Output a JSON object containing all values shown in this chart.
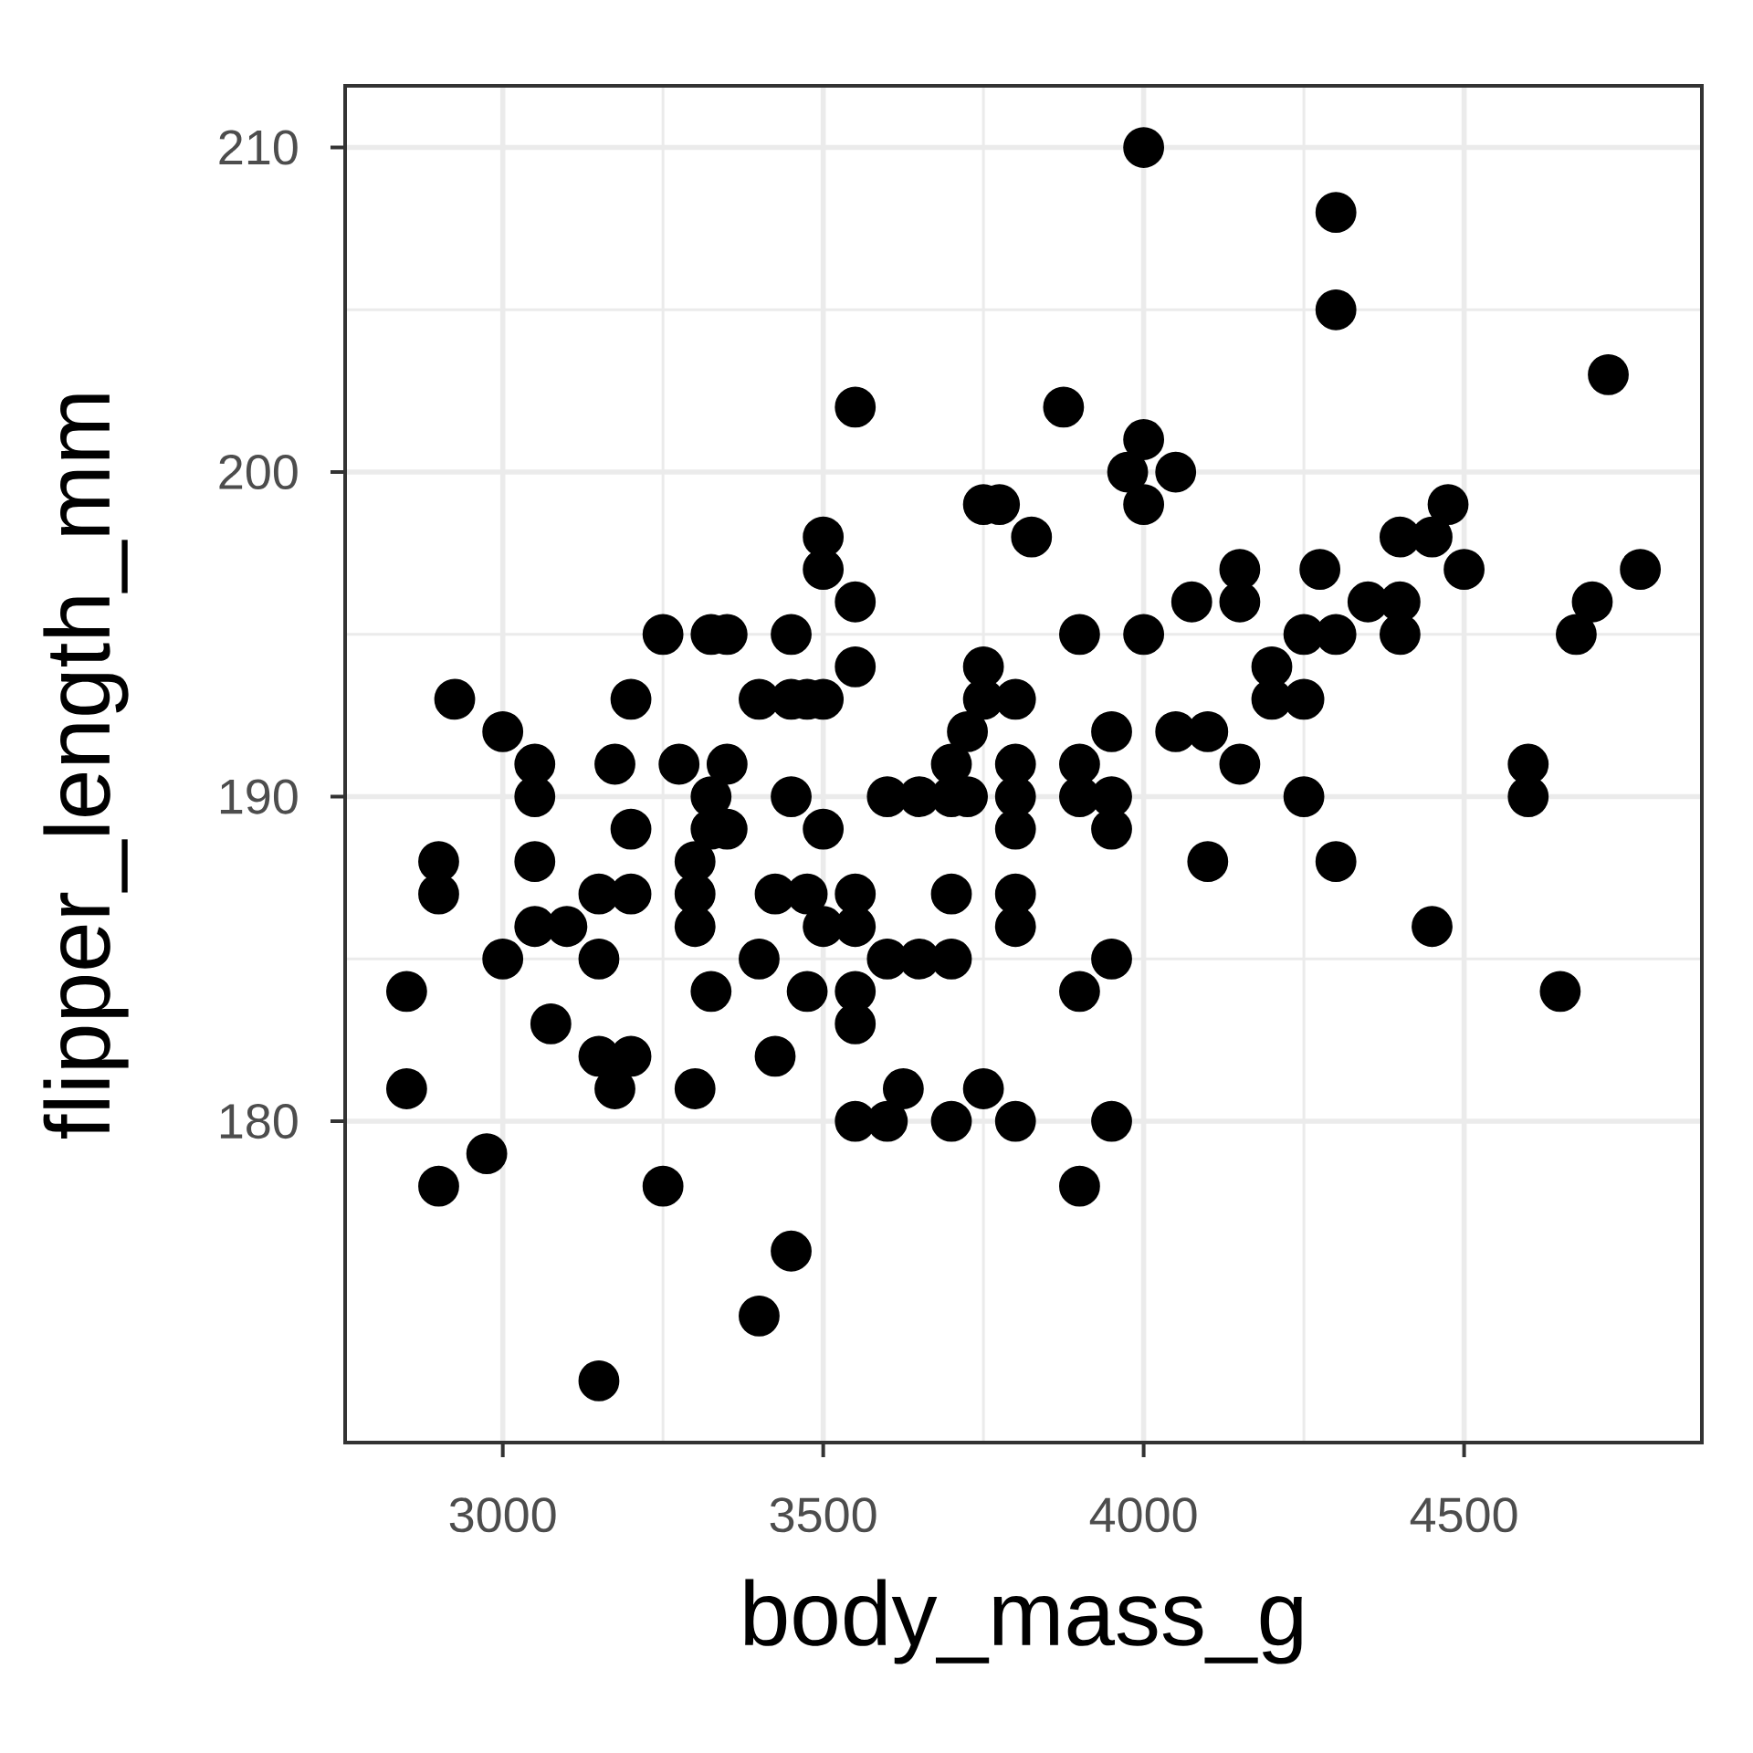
{
  "chart_data": {
    "type": "scatter",
    "xlabel": "body_mass_g",
    "ylabel": "flipper_length_mm",
    "x": [
      2850,
      2850,
      2900,
      2900,
      2900,
      2925,
      2975,
      3000,
      3000,
      3050,
      3050,
      3050,
      3050,
      3075,
      3100,
      3150,
      3150,
      3150,
      3150,
      3175,
      3175,
      3200,
      3200,
      3200,
      3200,
      3250,
      3250,
      3275,
      3300,
      3300,
      3300,
      3300,
      3325,
      3325,
      3325,
      3325,
      3350,
      3350,
      3350,
      3400,
      3400,
      3400,
      3425,
      3425,
      3450,
      3450,
      3450,
      3450,
      3475,
      3475,
      3475,
      3500,
      3500,
      3500,
      3500,
      3500,
      3550,
      3550,
      3550,
      3550,
      3550,
      3550,
      3550,
      3550,
      3600,
      3600,
      3600,
      3625,
      3650,
      3650,
      3700,
      3700,
      3700,
      3700,
      3700,
      3725,
      3725,
      3750,
      3750,
      3750,
      3750,
      3775,
      3800,
      3800,
      3800,
      3800,
      3800,
      3800,
      3800,
      3825,
      3875,
      3900,
      3900,
      3900,
      3900,
      3900,
      3950,
      3950,
      3950,
      3950,
      3950,
      3975,
      4000,
      4000,
      4000,
      4000,
      4050,
      4050,
      4075,
      4100,
      4100,
      4150,
      4150,
      4150,
      4200,
      4200,
      4250,
      4250,
      4250,
      4275,
      4300,
      4300,
      4300,
      4300,
      4350,
      4400,
      4400,
      4400,
      4450,
      4450,
      4475,
      4500,
      4600,
      4600,
      4650,
      4675,
      4700,
      4725,
      4775
    ],
    "values": [
      184,
      181,
      178,
      188,
      187,
      193,
      179,
      192,
      185,
      191,
      190,
      188,
      186,
      183,
      186,
      187,
      185,
      182,
      172,
      191,
      181,
      193,
      189,
      187,
      182,
      195,
      178,
      191,
      188,
      187,
      186,
      181,
      195,
      190,
      189,
      184,
      195,
      191,
      189,
      193,
      185,
      174,
      187,
      182,
      195,
      193,
      190,
      176,
      193,
      187,
      184,
      198,
      197,
      193,
      189,
      186,
      202,
      196,
      194,
      187,
      186,
      184,
      183,
      180,
      190,
      185,
      180,
      181,
      190,
      185,
      191,
      190,
      187,
      185,
      180,
      192,
      190,
      199,
      194,
      193,
      181,
      199,
      193,
      191,
      190,
      189,
      187,
      186,
      180,
      198,
      202,
      195,
      191,
      190,
      184,
      178,
      192,
      190,
      189,
      185,
      180,
      200,
      210,
      201,
      199,
      195,
      200,
      192,
      196,
      192,
      188,
      197,
      196,
      191,
      194,
      193,
      195,
      193,
      190,
      197,
      208,
      205,
      195,
      188,
      196,
      198,
      196,
      195,
      198,
      186,
      199,
      197,
      191,
      190,
      184,
      195,
      196,
      203,
      197
    ],
    "color": "#000000",
    "marker": "circle",
    "grid": true,
    "xlim": [
      2754,
      4871
    ],
    "ylim": [
      170.1,
      211.9
    ],
    "xticks": [
      3000,
      3500,
      4000,
      4500
    ],
    "yticks": [
      180,
      190,
      200,
      210
    ]
  }
}
